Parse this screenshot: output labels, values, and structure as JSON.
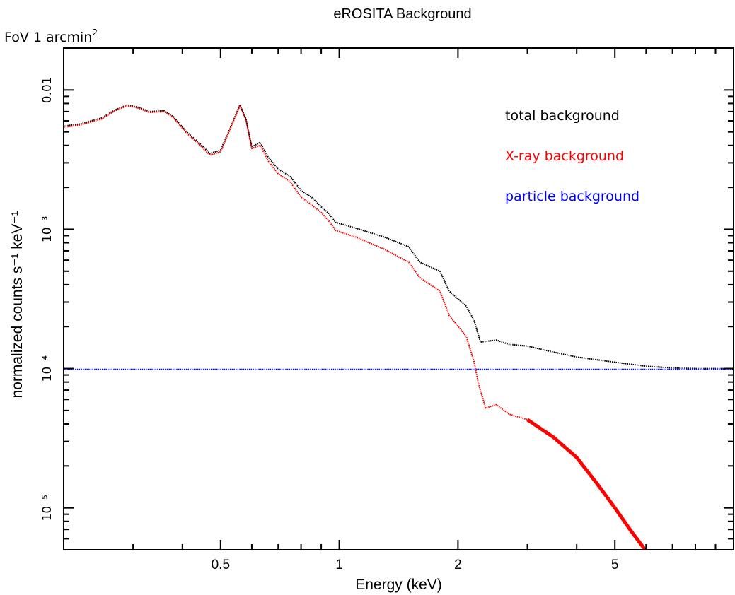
{
  "chart_data": {
    "type": "line",
    "title": "eROSITA Background",
    "subtitle_text": "FoV 1 arcmin",
    "subtitle_superscript": "2",
    "xlabel": "Energy (keV)",
    "ylabel": "normalized counts s⁻¹ keV⁻¹",
    "x_scale": "log",
    "y_scale": "log",
    "xlim": [
      0.2,
      10
    ],
    "ylim": [
      5e-06,
      0.02
    ],
    "grid": false,
    "legend_position": "top-right",
    "x_ticks": [
      {
        "value": 0.5,
        "label": "0.5"
      },
      {
        "value": 1,
        "label": "1"
      },
      {
        "value": 2,
        "label": "2"
      },
      {
        "value": 5,
        "label": "5"
      }
    ],
    "y_ticks": [
      {
        "value": 0.01,
        "label": "0.01"
      },
      {
        "value": 0.001,
        "label": "10⁻³"
      },
      {
        "value": 0.0001,
        "label": "10⁻⁴"
      },
      {
        "value": 1e-05,
        "label": "10⁻⁵"
      }
    ],
    "series": [
      {
        "name": "total background",
        "color": "#000000",
        "points": [
          [
            0.2,
            0.0055
          ],
          [
            0.22,
            0.0057
          ],
          [
            0.25,
            0.0063
          ],
          [
            0.27,
            0.0072
          ],
          [
            0.29,
            0.0078
          ],
          [
            0.31,
            0.0075
          ],
          [
            0.33,
            0.007
          ],
          [
            0.36,
            0.0071
          ],
          [
            0.38,
            0.0064
          ],
          [
            0.41,
            0.005
          ],
          [
            0.44,
            0.0042
          ],
          [
            0.47,
            0.0035
          ],
          [
            0.5,
            0.0037
          ],
          [
            0.53,
            0.0054
          ],
          [
            0.56,
            0.0078
          ],
          [
            0.58,
            0.0062
          ],
          [
            0.6,
            0.0039
          ],
          [
            0.63,
            0.0042
          ],
          [
            0.66,
            0.0033
          ],
          [
            0.7,
            0.0027
          ],
          [
            0.75,
            0.0024
          ],
          [
            0.8,
            0.0019
          ],
          [
            0.85,
            0.0017
          ],
          [
            0.9,
            0.00145
          ],
          [
            0.94,
            0.0013
          ],
          [
            0.98,
            0.00112
          ],
          [
            1.1,
            0.00102
          ],
          [
            1.3,
            0.00088
          ],
          [
            1.5,
            0.00075
          ],
          [
            1.6,
            0.00058
          ],
          [
            1.8,
            0.0005
          ],
          [
            1.9,
            0.00036
          ],
          [
            2.1,
            0.00028
          ],
          [
            2.2,
            0.00022
          ],
          [
            2.28,
            0.000155
          ],
          [
            2.5,
            0.00016
          ],
          [
            2.7,
            0.000149
          ],
          [
            3.0,
            0.000145
          ],
          [
            3.5,
            0.000131
          ],
          [
            4.0,
            0.000121
          ],
          [
            5.0,
            0.000111
          ],
          [
            6.0,
            0.000104
          ],
          [
            7.0,
            0.000101
          ],
          [
            8.0,
            0.0001
          ],
          [
            10.0,
            0.0001
          ]
        ]
      },
      {
        "name": "X-ray background",
        "color": "#ff0000",
        "points": [
          [
            0.2,
            0.0054
          ],
          [
            0.22,
            0.0056
          ],
          [
            0.25,
            0.0062
          ],
          [
            0.27,
            0.0071
          ],
          [
            0.29,
            0.0077
          ],
          [
            0.31,
            0.0074
          ],
          [
            0.33,
            0.0069
          ],
          [
            0.36,
            0.007
          ],
          [
            0.38,
            0.0063
          ],
          [
            0.41,
            0.0049
          ],
          [
            0.44,
            0.0041
          ],
          [
            0.47,
            0.0034
          ],
          [
            0.5,
            0.0036
          ],
          [
            0.53,
            0.0053
          ],
          [
            0.56,
            0.0077
          ],
          [
            0.58,
            0.0061
          ],
          [
            0.6,
            0.0038
          ],
          [
            0.63,
            0.004
          ],
          [
            0.66,
            0.0031
          ],
          [
            0.7,
            0.0025
          ],
          [
            0.75,
            0.0022
          ],
          [
            0.8,
            0.0017
          ],
          [
            0.85,
            0.0015
          ],
          [
            0.9,
            0.00132
          ],
          [
            0.94,
            0.00115
          ],
          [
            0.98,
            0.00098
          ],
          [
            1.1,
            0.00088
          ],
          [
            1.3,
            0.00072
          ],
          [
            1.5,
            0.00058
          ],
          [
            1.6,
            0.00045
          ],
          [
            1.8,
            0.00036
          ],
          [
            1.9,
            0.00024
          ],
          [
            2.1,
            0.00017
          ],
          [
            2.2,
            0.00011
          ],
          [
            2.25,
            8e-05
          ],
          [
            2.35,
            5.2e-05
          ],
          [
            2.5,
            5.5e-05
          ],
          [
            2.7,
            4.7e-05
          ],
          [
            3.0,
            4.3e-05
          ],
          [
            3.5,
            3.2e-05
          ],
          [
            4.0,
            2.3e-05
          ],
          [
            4.5,
            1.5e-05
          ],
          [
            5.0,
            1e-05
          ],
          [
            5.5,
            6.8e-06
          ],
          [
            6.0,
            4.9e-06
          ]
        ]
      },
      {
        "name": "particle background",
        "color": "#0000ff",
        "points": [
          [
            0.2,
            9.85e-05
          ],
          [
            10.0,
            9.85e-05
          ]
        ]
      }
    ]
  }
}
